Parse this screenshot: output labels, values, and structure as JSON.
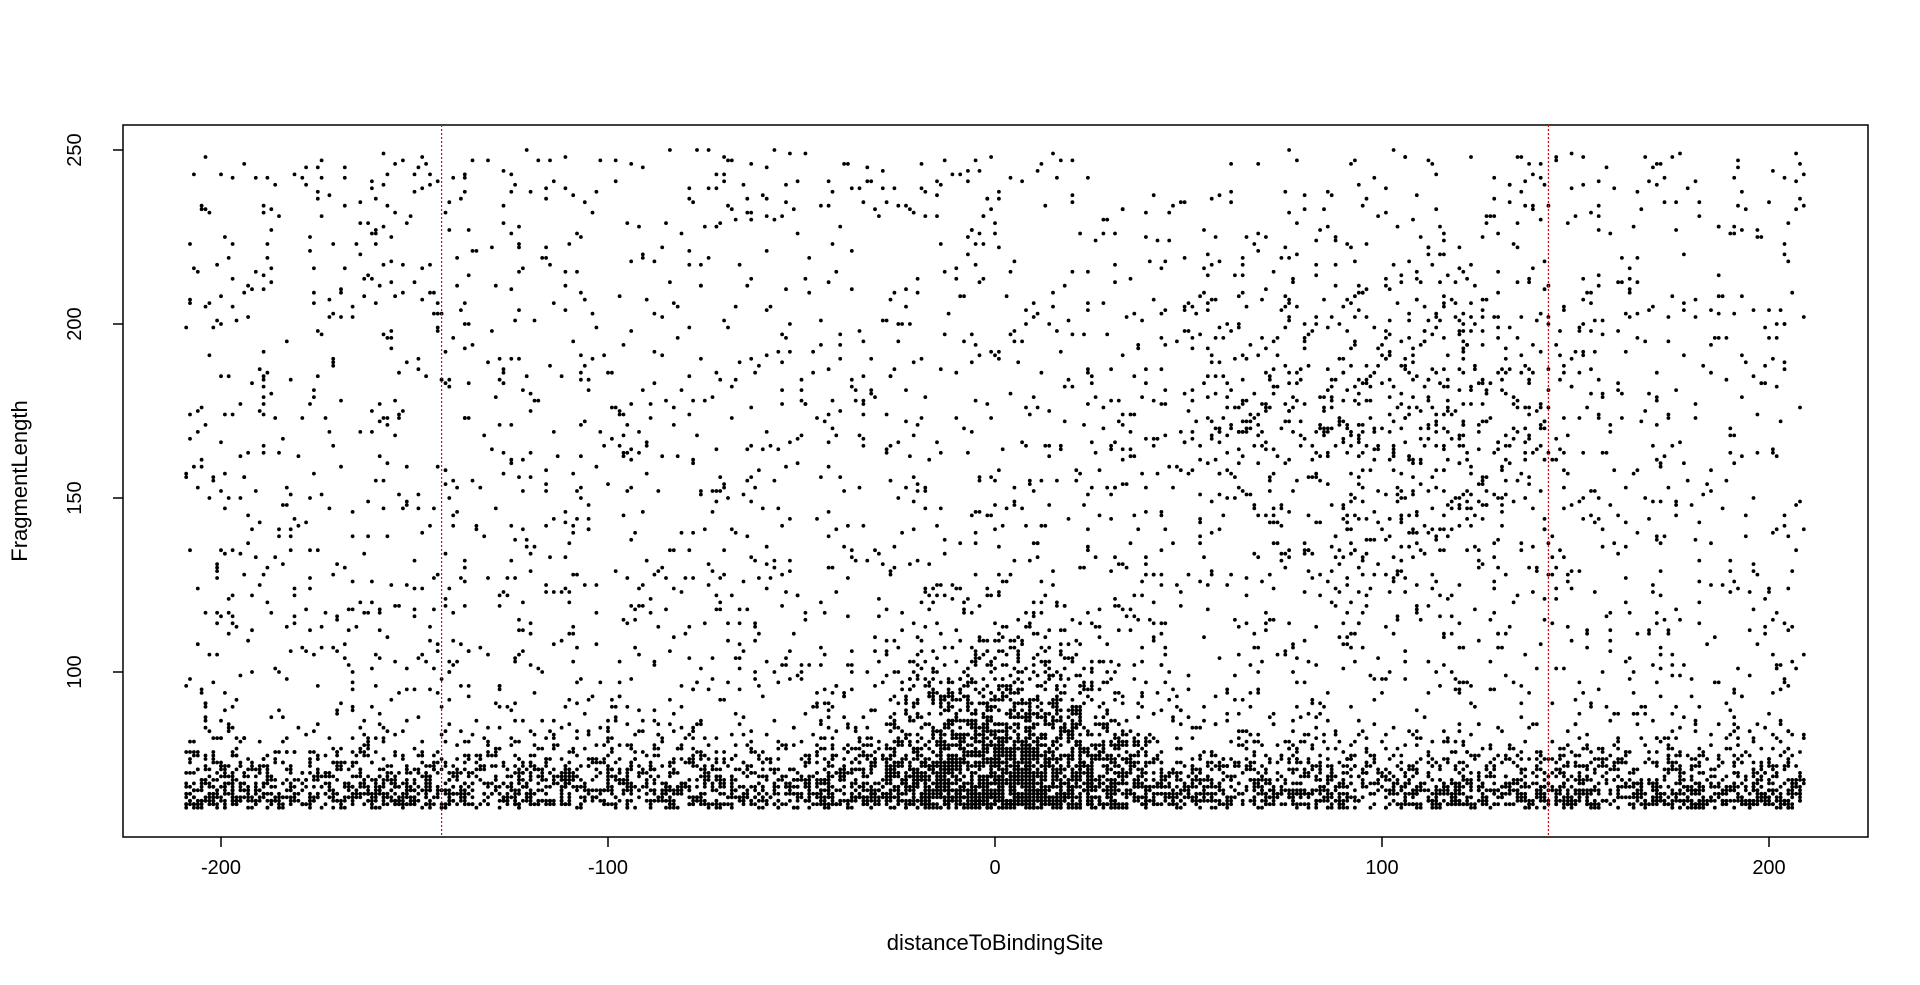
{
  "chart_data": {
    "type": "scatter",
    "title": "",
    "xlabel": "distanceToBindingSite",
    "ylabel": "FragmentLength",
    "xlim": [
      -225,
      225
    ],
    "ylim": [
      40,
      257
    ],
    "x_ticks": [
      -200,
      -100,
      0,
      100,
      200
    ],
    "y_ticks": [
      100,
      150,
      200,
      250
    ],
    "x_tick_labels": [
      "-200",
      "-100",
      "0",
      "100",
      "200"
    ],
    "y_tick_labels": [
      "100",
      "150",
      "200",
      "250"
    ],
    "grid": false,
    "legend": "none",
    "point_color": "#000000",
    "reference_lines": [
      {
        "axis": "x",
        "value": -143,
        "color": "#e00000",
        "style": "dotted"
      },
      {
        "axis": "x",
        "value": 143,
        "color": "#e00000",
        "style": "dotted"
      }
    ],
    "point_summary": {
      "x_range": [
        -209,
        209
      ],
      "y_range": [
        61,
        250
      ],
      "densest_region": {
        "x": [
          -20,
          30
        ],
        "y": [
          61,
          100
        ]
      },
      "dense_band_y": [
        61,
        78
      ]
    }
  }
}
